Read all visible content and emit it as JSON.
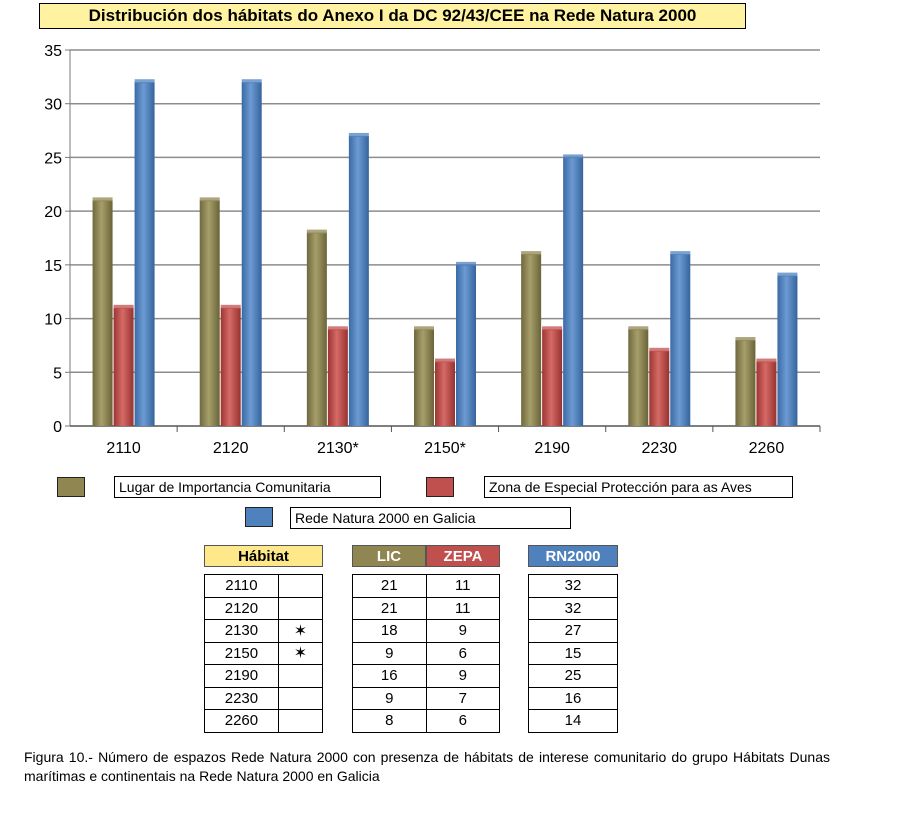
{
  "title": "Distribución dos hábitats do Anexo I da DC 92/43/CEE na Rede Natura 2000",
  "chart_data": {
    "type": "bar",
    "categories": [
      "2110",
      "2120",
      "2130*",
      "2150*",
      "2190",
      "2230",
      "2260"
    ],
    "series": [
      {
        "name": "Lugar de Importancia Comunitaria",
        "color": "#8f8652",
        "values": [
          21,
          21,
          18,
          9,
          16,
          9,
          8
        ]
      },
      {
        "name": "Zona de Especial Protección para as Aves",
        "color": "#c0504d",
        "values": [
          11,
          11,
          9,
          6,
          9,
          7,
          6
        ]
      },
      {
        "name": "Rede Natura 2000 en Galicia",
        "color": "#4f81bd",
        "values": [
          32,
          32,
          27,
          15,
          25,
          16,
          14
        ]
      }
    ],
    "yticks": [
      "0",
      "5",
      "10",
      "15",
      "20",
      "25",
      "30",
      "35"
    ],
    "ylim": [
      0,
      35
    ],
    "grid": true,
    "legend_position": "bottom"
  },
  "table": {
    "habitat_header": "Hábitat",
    "lic_header": "LIC",
    "zepa_header": "ZEPA",
    "rn_header": "RN2000",
    "header_colors": {
      "habitat": "#ffe88a",
      "lic": "#8f8652",
      "zepa": "#c0504d",
      "rn": "#4f81bd"
    },
    "rows": [
      {
        "habitat": "2110",
        "mark": "",
        "lic": "21",
        "zepa": "11",
        "rn": "32"
      },
      {
        "habitat": "2120",
        "mark": "",
        "lic": "21",
        "zepa": "11",
        "rn": "32"
      },
      {
        "habitat": "2130",
        "mark": "✶",
        "lic": "18",
        "zepa": "9",
        "rn": "27"
      },
      {
        "habitat": "2150",
        "mark": "✶",
        "lic": "9",
        "zepa": "6",
        "rn": "15"
      },
      {
        "habitat": "2190",
        "mark": "",
        "lic": "16",
        "zepa": "9",
        "rn": "25"
      },
      {
        "habitat": "2230",
        "mark": "",
        "lic": "9",
        "zepa": "7",
        "rn": "16"
      },
      {
        "habitat": "2260",
        "mark": "",
        "lic": "8",
        "zepa": "6",
        "rn": "14"
      }
    ]
  },
  "caption": "Figura 10.- Número de espazos Rede Natura 2000 con presenza de hábitats de interese comunitario do grupo Hábitats Dunas marítimas e continentais na Rede Natura 2000 en Galicia"
}
